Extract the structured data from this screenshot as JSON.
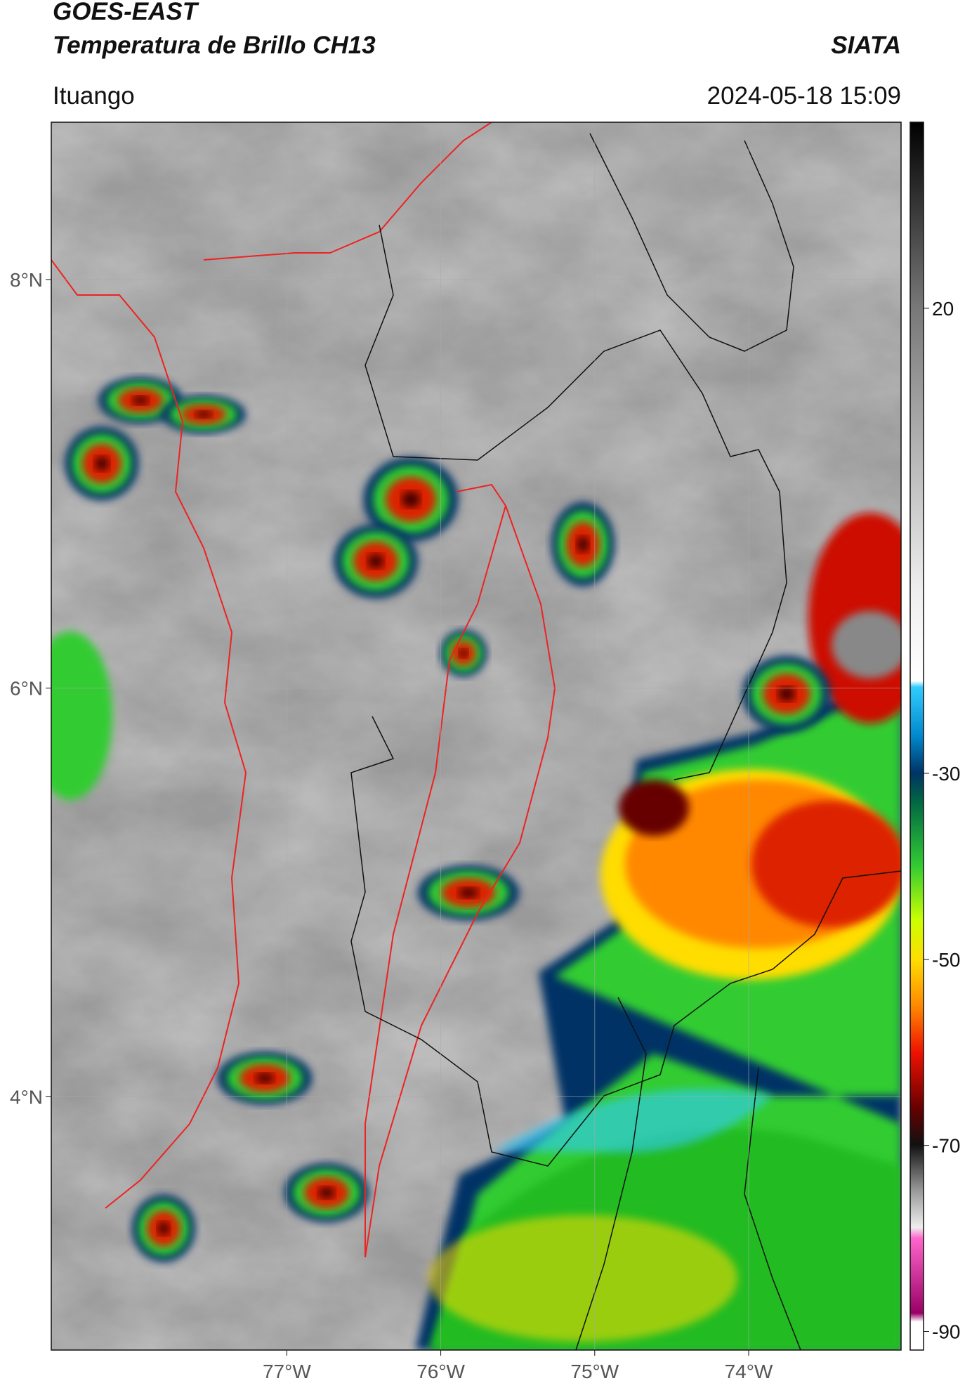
{
  "header": {
    "title": "GOES-EAST",
    "subtitle": "Temperatura de Brillo CH13",
    "source": "SIATA",
    "location": "Ituango",
    "datetime": "2024-05-18 15:09"
  },
  "map": {
    "xlim": [
      -78.53,
      -73.01
    ],
    "ylim": [
      2.76,
      8.77
    ],
    "xticks": [
      {
        "value": -77,
        "label": "77°W"
      },
      {
        "value": -76,
        "label": "76°W"
      },
      {
        "value": -75,
        "label": "75°W"
      },
      {
        "value": -74,
        "label": "74°W"
      }
    ],
    "yticks": [
      {
        "value": 8,
        "label": "8°N"
      },
      {
        "value": 6,
        "label": "6°N"
      },
      {
        "value": 4,
        "label": "4°N"
      }
    ],
    "grid": true
  },
  "colorbar": {
    "lim": [
      -92,
      40
    ],
    "ticks": [
      20,
      -30,
      -50,
      -70,
      -90
    ]
  }
}
